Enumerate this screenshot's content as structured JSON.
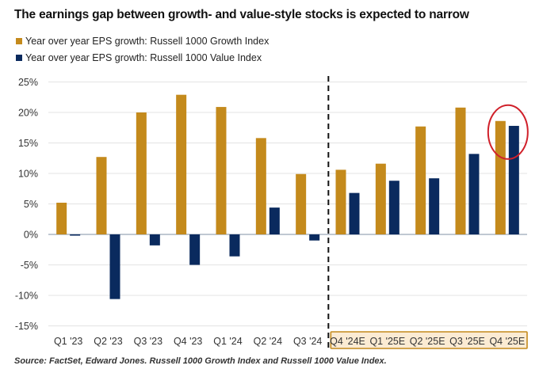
{
  "chart_data": {
    "type": "bar",
    "title": "The earnings gap between growth- and value-style stocks is expected to narrow",
    "xlabel": "",
    "ylabel": "",
    "ylim": [
      -15,
      25
    ],
    "yticks": [
      25,
      20,
      15,
      10,
      5,
      0,
      -5,
      -10,
      -15
    ],
    "ytick_labels": [
      "25%",
      "20%",
      "15%",
      "10%",
      "5%",
      "0%",
      "-5%",
      "-10%",
      "-15%"
    ],
    "grid": true,
    "legend_position": "top-left",
    "categories": [
      "Q1 '23",
      "Q2 '23",
      "Q3 '23",
      "Q4 '23",
      "Q1 '24",
      "Q2 '24",
      "Q3 '24",
      "Q4 '24E",
      "Q1 '25E",
      "Q2 '25E",
      "Q3 '25E",
      "Q4 '25E"
    ],
    "series": [
      {
        "name": "Year over year EPS growth: Russell 1000 Growth Index",
        "color": "#C48A1C",
        "values": [
          5.2,
          12.7,
          20.0,
          22.9,
          20.9,
          15.8,
          9.9,
          10.6,
          11.6,
          17.7,
          20.8,
          18.6
        ]
      },
      {
        "name": "Year over year EPS growth: Russell 1000 Value Index",
        "color": "#0A2A5E",
        "values": [
          -0.2,
          -10.6,
          -1.8,
          -5.0,
          -3.6,
          4.4,
          -1.0,
          6.8,
          8.8,
          9.2,
          13.2,
          17.8
        ]
      }
    ],
    "annotations": [
      {
        "type": "dashed-divider",
        "between": [
          "Q3 '24",
          "Q4 '24E"
        ],
        "meaning": "actual vs estimate"
      },
      {
        "type": "highlight-box",
        "categories": [
          "Q4 '24E",
          "Q1 '25E",
          "Q2 '25E",
          "Q3 '25E",
          "Q4 '25E"
        ],
        "color": "#C48A1C"
      },
      {
        "type": "circle",
        "category": "Q4 '25E",
        "color": "#D0202A"
      }
    ]
  },
  "source": "Source: FactSet, Edward Jones. Russell 1000 Growth Index and Russell 1000 Value Index."
}
